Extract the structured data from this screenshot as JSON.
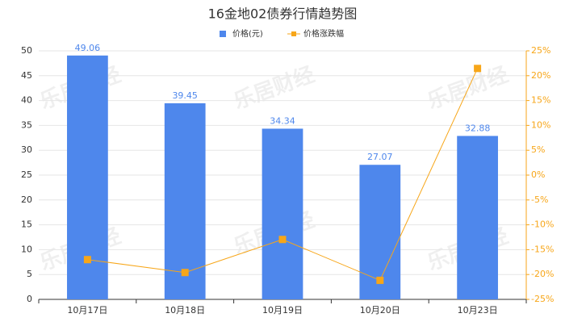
{
  "chart_data": {
    "type": "bar",
    "title": "16金地02债券行情趋势图",
    "watermark": "乐居财经",
    "categories": [
      "10月17日",
      "10月18日",
      "10月19日",
      "10月20日",
      "10月23日"
    ],
    "series": [
      {
        "name": "价格(元)",
        "type": "bar",
        "color": "#4e87ec",
        "values": [
          49.06,
          39.45,
          34.34,
          27.07,
          32.88
        ]
      },
      {
        "name": "价格涨跌幅",
        "type": "line",
        "axis": "y2",
        "color": "#f7a619",
        "values": [
          -17,
          -19.6,
          -12.95,
          -21.17,
          21.46
        ]
      }
    ],
    "ylim": [
      0,
      50
    ],
    "yticks": [
      0,
      5,
      10,
      15,
      20,
      25,
      30,
      35,
      40,
      45,
      50
    ],
    "y2lim": [
      -25,
      25
    ],
    "y2ticks": [
      {
        "value": -25,
        "label": "-25%"
      },
      {
        "value": -20,
        "label": "-20%"
      },
      {
        "value": -15,
        "label": "-15%"
      },
      {
        "value": -10,
        "label": "-10%"
      },
      {
        "value": -5,
        "label": "-5%"
      },
      {
        "value": 0,
        "label": "0%"
      },
      {
        "value": 5,
        "label": "5%"
      },
      {
        "value": 10,
        "label": "10%"
      },
      {
        "value": 15,
        "label": "15%"
      },
      {
        "value": 20,
        "label": "20%"
      },
      {
        "value": 25,
        "label": "25%"
      }
    ],
    "grid": true
  }
}
